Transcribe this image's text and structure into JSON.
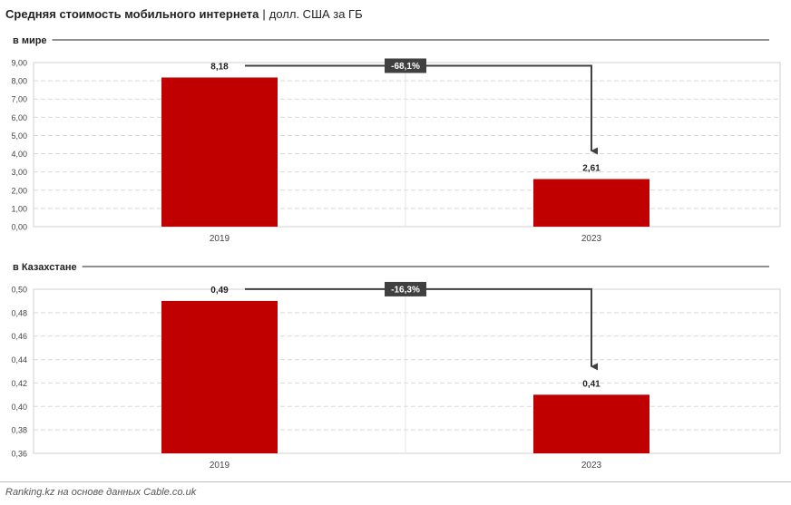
{
  "title": {
    "main": "Средняя стоимость мобильного интернета",
    "separator": "|",
    "unit": "долл. США за ГБ"
  },
  "source": "Ranking.kz на основе данных Cable.co.uk",
  "colors": {
    "bar": "#c00000",
    "arrow": "#404040",
    "badge": "#404040",
    "grid": "#d9d9d9"
  },
  "chart_data": [
    {
      "type": "bar",
      "section_label": "в мире",
      "categories": [
        "2019",
        "2023"
      ],
      "values": [
        8.18,
        2.61
      ],
      "value_labels": [
        "8,18",
        "2,61"
      ],
      "ylim": [
        0,
        9
      ],
      "yticks": [
        "0,00",
        "1,00",
        "2,00",
        "3,00",
        "4,00",
        "5,00",
        "6,00",
        "7,00",
        "8,00",
        "9,00"
      ],
      "change_label": "-68,1%",
      "grid": true
    },
    {
      "type": "bar",
      "section_label": "в Казахстане",
      "categories": [
        "2019",
        "2023"
      ],
      "values": [
        0.49,
        0.41
      ],
      "value_labels": [
        "0,49",
        "0,41"
      ],
      "ylim": [
        0.36,
        0.5
      ],
      "yticks": [
        "0,36",
        "0,38",
        "0,40",
        "0,42",
        "0,44",
        "0,46",
        "0,48",
        "0,50"
      ],
      "change_label": "-16,3%",
      "grid": true
    }
  ]
}
